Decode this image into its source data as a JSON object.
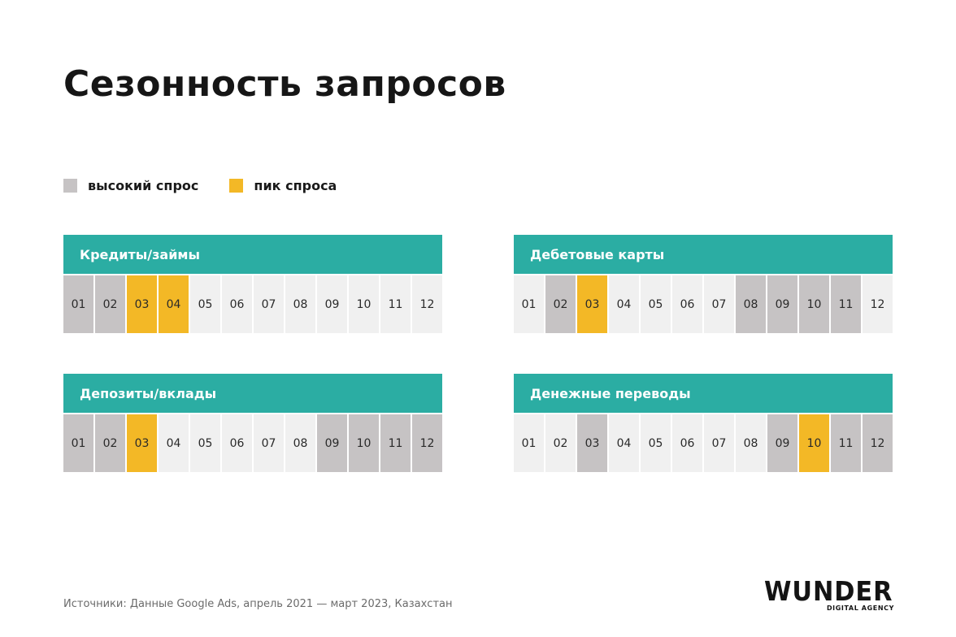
{
  "title": "Сезонность запросов",
  "legend": {
    "high": {
      "label": "высокий спрос",
      "color": "#c6c3c4"
    },
    "peak": {
      "label": "пик спроса",
      "color": "#f3b826"
    }
  },
  "colors": {
    "header": "#2bada3",
    "normal": "#f0f0f0"
  },
  "months": [
    "01",
    "02",
    "03",
    "04",
    "05",
    "06",
    "07",
    "08",
    "09",
    "10",
    "11",
    "12"
  ],
  "blocks": [
    {
      "title": "Кредиты/займы",
      "states": [
        "high",
        "high",
        "peak",
        "peak",
        "normal",
        "normal",
        "normal",
        "normal",
        "normal",
        "normal",
        "normal",
        "normal"
      ]
    },
    {
      "title": "Дебетовые карты",
      "states": [
        "normal",
        "high",
        "peak",
        "normal",
        "normal",
        "normal",
        "normal",
        "high",
        "high",
        "high",
        "high",
        "normal"
      ]
    },
    {
      "title": "Депозиты/вклады",
      "states": [
        "high",
        "high",
        "peak",
        "normal",
        "normal",
        "normal",
        "normal",
        "normal",
        "high",
        "high",
        "high",
        "high"
      ]
    },
    {
      "title": "Денежные переводы",
      "states": [
        "normal",
        "normal",
        "high",
        "normal",
        "normal",
        "normal",
        "normal",
        "normal",
        "high",
        "peak",
        "high",
        "high"
      ]
    }
  ],
  "footer": "Источники: Данные Google Ads, апрель 2021 — март 2023, Казахстан",
  "logo": {
    "word": "WUNDER",
    "sub": "DIGITAL AGENCY"
  }
}
